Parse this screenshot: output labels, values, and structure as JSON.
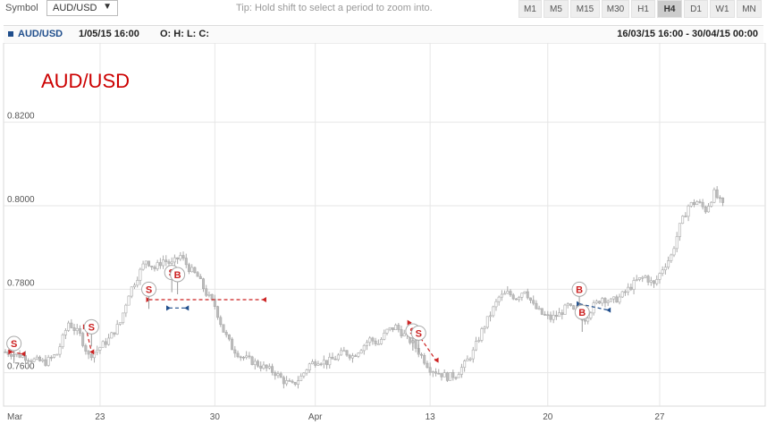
{
  "toolbar": {
    "symbol_label": "Symbol",
    "symbol_value": "AUD/USD",
    "tip": "Tip: Hold shift to select a period to zoom into.",
    "timeframes": [
      "M1",
      "M5",
      "M15",
      "M30",
      "H1",
      "H4",
      "D1",
      "W1",
      "MN"
    ],
    "active_timeframe": "H4"
  },
  "infobar": {
    "symbol": "AUD/USD",
    "datetime": "1/05/15 16:00",
    "ohlc": "O: H: L: C:",
    "range": "16/03/15 16:00 - 30/04/15 00:00"
  },
  "chart_data": {
    "type": "candlestick",
    "title": "AUD/USD",
    "y_ticks": [
      "0.7600",
      "0.7800",
      "0.8000",
      "0.8200"
    ],
    "ylim": [
      0.752,
      0.839
    ],
    "x_ticks": [
      "Mar",
      "23",
      "30",
      "Apr",
      "13",
      "20",
      "27"
    ],
    "colors": {
      "candle": "#bdbdbd",
      "sell": "#cc2222",
      "buy": "#1f4e8c",
      "title": "#cc0000",
      "grid": "#e6e6e6"
    },
    "close_path": [
      [
        0,
        0.765
      ],
      [
        6,
        0.764
      ],
      [
        10,
        0.763
      ],
      [
        14,
        0.7625
      ],
      [
        18,
        0.7645
      ],
      [
        22,
        0.772
      ],
      [
        26,
        0.769
      ],
      [
        29,
        0.764
      ],
      [
        32,
        0.7655
      ],
      [
        36,
        0.768
      ],
      [
        40,
        0.772
      ],
      [
        43,
        0.779
      ],
      [
        46,
        0.783
      ],
      [
        49,
        0.787
      ],
      [
        52,
        0.785
      ],
      [
        55,
        0.787
      ],
      [
        58,
        0.786
      ],
      [
        61,
        0.788
      ],
      [
        64,
        0.785
      ],
      [
        67,
        0.783
      ],
      [
        70,
        0.779
      ],
      [
        73,
        0.776
      ],
      [
        76,
        0.77
      ],
      [
        79,
        0.766
      ],
      [
        82,
        0.764
      ],
      [
        85,
        0.763
      ],
      [
        88,
        0.762
      ],
      [
        91,
        0.761
      ],
      [
        94,
        0.76
      ],
      [
        97,
        0.758
      ],
      [
        100,
        0.757
      ],
      [
        103,
        0.759
      ],
      [
        106,
        0.762
      ],
      [
        109,
        0.763
      ],
      [
        112,
        0.7625
      ],
      [
        115,
        0.7635
      ],
      [
        118,
        0.765
      ],
      [
        121,
        0.764
      ],
      [
        124,
        0.766
      ],
      [
        127,
        0.768
      ],
      [
        130,
        0.767
      ],
      [
        133,
        0.77
      ],
      [
        136,
        0.771
      ],
      [
        139,
        0.769
      ],
      [
        142,
        0.767
      ],
      [
        145,
        0.764
      ],
      [
        148,
        0.761
      ],
      [
        151,
        0.76
      ],
      [
        154,
        0.759
      ],
      [
        157,
        0.7595
      ],
      [
        160,
        0.762
      ],
      [
        163,
        0.765
      ],
      [
        166,
        0.77
      ],
      [
        169,
        0.774
      ],
      [
        172,
        0.778
      ],
      [
        175,
        0.779
      ],
      [
        178,
        0.778
      ],
      [
        181,
        0.78
      ],
      [
        184,
        0.776
      ],
      [
        187,
        0.774
      ],
      [
        190,
        0.773
      ],
      [
        193,
        0.774
      ],
      [
        196,
        0.776
      ],
      [
        199,
        0.774
      ],
      [
        202,
        0.773
      ],
      [
        205,
        0.776
      ],
      [
        208,
        0.778
      ],
      [
        211,
        0.777
      ],
      [
        214,
        0.778
      ],
      [
        217,
        0.78
      ],
      [
        220,
        0.782
      ],
      [
        223,
        0.783
      ],
      [
        226,
        0.781
      ],
      [
        229,
        0.785
      ],
      [
        232,
        0.788
      ],
      [
        235,
        0.795
      ],
      [
        238,
        0.8
      ],
      [
        241,
        0.801
      ],
      [
        244,
        0.799
      ],
      [
        247,
        0.803
      ],
      [
        250,
        0.8
      ]
    ],
    "signals": [
      {
        "type": "S",
        "x": 3,
        "y": 0.767
      },
      {
        "type": "S",
        "x": 30,
        "y": 0.771
      },
      {
        "type": "S",
        "x": 50,
        "y": 0.78
      },
      {
        "type": "S",
        "x": 58,
        "y": 0.784
      },
      {
        "type": "B",
        "x": 60,
        "y": 0.7835
      },
      {
        "type": "S",
        "x": 142,
        "y": 0.77
      },
      {
        "type": "S",
        "x": 144,
        "y": 0.7695
      },
      {
        "type": "B",
        "x": 200,
        "y": 0.78
      },
      {
        "type": "B",
        "x": 201,
        "y": 0.7745
      }
    ],
    "trades": [
      {
        "type": "sell",
        "from": [
          2,
          0.765
        ],
        "to": [
          6,
          0.7645
        ]
      },
      {
        "type": "sell",
        "from": [
          28,
          0.771
        ],
        "to": [
          30,
          0.765
        ]
      },
      {
        "type": "sell",
        "from": [
          50,
          0.7775
        ],
        "to": [
          90,
          0.7775
        ]
      },
      {
        "type": "buy",
        "from": [
          57,
          0.7755
        ],
        "to": [
          63,
          0.7755
        ]
      },
      {
        "type": "sell",
        "from": [
          141,
          0.772
        ],
        "to": [
          150,
          0.763
        ]
      },
      {
        "type": "buy",
        "from": [
          200,
          0.7765
        ],
        "to": [
          210,
          0.775
        ]
      }
    ]
  }
}
